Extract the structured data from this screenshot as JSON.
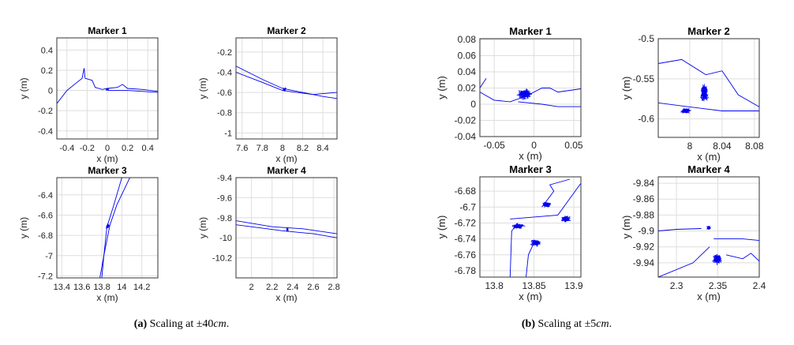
{
  "captions": [
    {
      "label": "(a)",
      "text": "Scaling at ±40",
      "unit": "cm",
      "end": "."
    },
    {
      "label": "(b)",
      "text": "Scaling at ±5",
      "unit": "cm",
      "end": "."
    }
  ],
  "line_color": "#0000ee",
  "chart_data": [
    {
      "type": "line",
      "panel": "a",
      "title": "Marker 1",
      "xlabel": "x (m)",
      "ylabel": "y (m)",
      "grid": true,
      "xlim": [
        -0.5,
        0.5
      ],
      "ylim": [
        -0.48,
        0.52
      ],
      "xticks": [
        -0.4,
        -0.2,
        0,
        0.2,
        0.4
      ],
      "xtick_labels": [
        "-0.4",
        "-0.2",
        "0",
        "0.2",
        "0.4"
      ],
      "yticks": [
        -0.4,
        -0.2,
        0,
        0.2,
        0.4
      ],
      "ytick_labels": [
        "-0.4",
        "-0.2",
        "0",
        "0.2",
        "0.4"
      ],
      "series": [
        {
          "x": [
            -0.5,
            -0.4,
            -0.3,
            -0.25,
            -0.23,
            -0.22,
            -0.15,
            -0.12,
            -0.05,
            0,
            0.1,
            0.15,
            0.2,
            0.35,
            0.5
          ],
          "y": [
            -0.13,
            0.0,
            0.08,
            0.12,
            0.22,
            0.12,
            0.1,
            0.03,
            0.01,
            0.02,
            0.03,
            0.06,
            0.02,
            0.01,
            -0.01
          ]
        },
        {
          "x": [
            0,
            0.2,
            0.5
          ],
          "y": [
            0,
            0.0,
            -0.02
          ]
        }
      ],
      "clusters": [
        {
          "x": 0,
          "y": 0.01,
          "sx": 0.02,
          "sy": 0.012
        }
      ]
    },
    {
      "type": "line",
      "panel": "a",
      "title": "Marker 2",
      "xlabel": "x (m)",
      "ylabel": "y (m)",
      "grid": true,
      "xlim": [
        7.54,
        8.54
      ],
      "ylim": [
        -1.06,
        -0.06
      ],
      "xticks": [
        7.6,
        7.8,
        8,
        8.2,
        8.4
      ],
      "xtick_labels": [
        "7.6",
        "7.8",
        "8",
        "8.2",
        "8.4"
      ],
      "yticks": [
        -1,
        -0.8,
        -0.6,
        -0.4,
        -0.2
      ],
      "ytick_labels": [
        "-1",
        "-0.8",
        "-0.6",
        "-0.4",
        "-0.2"
      ],
      "series": [
        {
          "x": [
            7.54,
            7.8,
            8,
            8.2,
            8.4,
            8.54
          ],
          "y": [
            -0.34,
            -0.47,
            -0.56,
            -0.6,
            -0.64,
            -0.66
          ]
        },
        {
          "x": [
            7.54,
            7.8,
            8,
            8.3,
            8.54
          ],
          "y": [
            -0.4,
            -0.5,
            -0.58,
            -0.62,
            -0.6
          ]
        }
      ],
      "clusters": [
        {
          "x": 8.02,
          "y": -0.57,
          "sx": 0.025,
          "sy": 0.02
        }
      ]
    },
    {
      "type": "line",
      "panel": "a",
      "title": "Marker 3",
      "xlabel": "x (m)",
      "ylabel": "y (m)",
      "grid": true,
      "xlim": [
        13.35,
        14.36
      ],
      "ylim": [
        -7.22,
        -6.23
      ],
      "xticks": [
        13.4,
        13.6,
        13.8,
        14,
        14.2
      ],
      "xtick_labels": [
        "13.4",
        "13.6",
        "13.8",
        "14",
        "14.2"
      ],
      "yticks": [
        -7.2,
        -7,
        -6.8,
        -6.6,
        -6.4
      ],
      "ytick_labels": [
        "-7.2",
        "-7",
        "-6.8",
        "-6.6",
        "-6.4"
      ],
      "series": [
        {
          "x": [
            14.08,
            13.95,
            13.88,
            13.82,
            13.78
          ],
          "y": [
            -6.23,
            -6.5,
            -6.7,
            -7.0,
            -7.22
          ]
        },
        {
          "x": [
            14.0,
            13.92,
            13.85,
            13.82,
            13.8
          ],
          "y": [
            -6.23,
            -6.5,
            -6.72,
            -7.0,
            -7.22
          ]
        }
      ],
      "clusters": [
        {
          "x": 13.86,
          "y": -6.71,
          "sx": 0.025,
          "sy": 0.04
        }
      ]
    },
    {
      "type": "line",
      "panel": "a",
      "title": "Marker 4",
      "xlabel": "x (m)",
      "ylabel": "y (m)",
      "grid": true,
      "xlim": [
        1.85,
        2.83
      ],
      "ylim": [
        -10.4,
        -9.4
      ],
      "xticks": [
        2,
        2.2,
        2.4,
        2.6,
        2.8
      ],
      "xtick_labels": [
        "2",
        "2.2",
        "2.4",
        "2.6",
        "2.8"
      ],
      "yticks": [
        -10.2,
        -10,
        -9.8,
        -9.6,
        -9.4
      ],
      "ytick_labels": [
        "-10.2",
        "-10",
        "-9.8",
        "-9.6",
        "-9.4"
      ],
      "series": [
        {
          "x": [
            1.85,
            2.2,
            2.5,
            2.83
          ],
          "y": [
            -9.83,
            -9.89,
            -9.91,
            -9.96
          ]
        },
        {
          "x": [
            1.85,
            2.3,
            2.6,
            2.83
          ],
          "y": [
            -9.87,
            -9.93,
            -9.96,
            -10.0
          ]
        }
      ],
      "clusters": [
        {
          "x": 2.35,
          "y": -9.92,
          "sx": 0.012,
          "sy": 0.025
        }
      ]
    },
    {
      "type": "line",
      "panel": "b",
      "title": "Marker 1",
      "xlabel": "x (m)",
      "ylabel": "y (m)",
      "grid": true,
      "xlim": [
        -0.068,
        0.059
      ],
      "ylim": [
        -0.04,
        0.081
      ],
      "xticks": [
        -0.05,
        0,
        0.05
      ],
      "xtick_labels": [
        "-0.05",
        "0",
        "0.05"
      ],
      "yticks": [
        -0.04,
        -0.02,
        0,
        0.02,
        0.04,
        0.06,
        0.08
      ],
      "ytick_labels": [
        "-0.04",
        "-0.02",
        "0",
        "0.02",
        "0.04",
        "0.06",
        "0.08"
      ],
      "series": [
        {
          "x": [
            -0.068,
            -0.064,
            -0.06
          ],
          "y": [
            0.02,
            0.026,
            0.032
          ]
        },
        {
          "x": [
            -0.068,
            -0.05,
            -0.03,
            -0.01,
            0.01,
            0.02,
            0.03,
            0.059
          ],
          "y": [
            0.015,
            0.005,
            0.003,
            0.01,
            0.02,
            0.02,
            0.015,
            0.019
          ]
        },
        {
          "x": [
            -0.02,
            0.01,
            0.03,
            0.059
          ],
          "y": [
            0.003,
            0.0,
            -0.003,
            -0.003
          ]
        }
      ],
      "clusters": [
        {
          "x": -0.012,
          "y": 0.012,
          "sx": 0.012,
          "sy": 0.008
        }
      ]
    },
    {
      "type": "line",
      "panel": "b",
      "title": "Marker 2",
      "xlabel": "x (m)",
      "ylabel": "y (m)",
      "grid": true,
      "xlim": [
        7.961,
        8.086
      ],
      "ylim": [
        -0.623,
        -0.5
      ],
      "xticks": [
        8,
        8.04,
        8.08
      ],
      "xtick_labels": [
        "8",
        "8.04",
        "8.08"
      ],
      "yticks": [
        -0.6,
        -0.55,
        -0.5
      ],
      "ytick_labels": [
        "-0.6",
        "-0.55",
        "-0.5"
      ],
      "series": [
        {
          "x": [
            7.961,
            7.99,
            8.02,
            8.04,
            8.06,
            8.086
          ],
          "y": [
            -0.531,
            -0.526,
            -0.545,
            -0.54,
            -0.57,
            -0.585
          ]
        },
        {
          "x": [
            7.961,
            8.0,
            8.04,
            8.086
          ],
          "y": [
            -0.58,
            -0.585,
            -0.59,
            -0.59
          ]
        }
      ],
      "clusters": [
        {
          "x": 8.018,
          "y": -0.568,
          "sx": 0.006,
          "sy": 0.014
        },
        {
          "x": 7.995,
          "y": -0.59,
          "sx": 0.008,
          "sy": 0.004
        }
      ]
    },
    {
      "type": "line",
      "panel": "b",
      "title": "Marker 3",
      "xlabel": "x (m)",
      "ylabel": "y (m)",
      "grid": true,
      "xlim": [
        13.782,
        13.909
      ],
      "ylim": [
        -6.788,
        -6.662
      ],
      "xticks": [
        13.8,
        13.85,
        13.9
      ],
      "xtick_labels": [
        "13.8",
        "13.85",
        "13.9"
      ],
      "yticks": [
        -6.78,
        -6.76,
        -6.74,
        -6.72,
        -6.7,
        -6.68
      ],
      "ytick_labels": [
        "-6.78",
        "-6.76",
        "-6.74",
        "-6.72",
        "-6.7",
        "-6.68"
      ],
      "series": [
        {
          "x": [
            13.82,
            13.822,
            13.83
          ],
          "y": [
            -6.788,
            -6.73,
            -6.72
          ]
        },
        {
          "x": [
            13.84,
            13.843,
            13.85
          ],
          "y": [
            -6.788,
            -6.76,
            -6.745
          ]
        },
        {
          "x": [
            13.82,
            13.88,
            13.909
          ],
          "y": [
            -6.715,
            -6.71,
            -6.67
          ]
        },
        {
          "x": [
            13.86,
            13.875,
            13.87,
            13.895
          ],
          "y": [
            -6.7,
            -6.68,
            -6.672,
            -6.665
          ]
        }
      ],
      "clusters": [
        {
          "x": 13.83,
          "y": -6.724,
          "sx": 0.01,
          "sy": 0.004
        },
        {
          "x": 13.852,
          "y": -6.745,
          "sx": 0.008,
          "sy": 0.005
        },
        {
          "x": 13.866,
          "y": -6.697,
          "sx": 0.007,
          "sy": 0.004
        },
        {
          "x": 13.89,
          "y": -6.715,
          "sx": 0.008,
          "sy": 0.005
        }
      ]
    },
    {
      "type": "line",
      "panel": "b",
      "title": "Marker 4",
      "xlabel": "x (m)",
      "ylabel": "y (m)",
      "grid": true,
      "xlim": [
        2.278,
        2.4
      ],
      "ylim": [
        -9.958,
        -9.832
      ],
      "xticks": [
        2.3,
        2.35,
        2.4
      ],
      "xtick_labels": [
        "2.3",
        "2.35",
        "2.4"
      ],
      "yticks": [
        -9.94,
        -9.92,
        -9.9,
        -9.88,
        -9.86,
        -9.84
      ],
      "ytick_labels": [
        "-9.94",
        "-9.92",
        "-9.9",
        "-9.88",
        "-9.86",
        "-9.84"
      ],
      "series": [
        {
          "x": [
            2.278,
            2.3,
            2.33
          ],
          "y": [
            -9.9,
            -9.898,
            -9.897
          ]
        },
        {
          "x": [
            2.278,
            2.32,
            2.34
          ],
          "y": [
            -9.958,
            -9.94,
            -9.92
          ]
        },
        {
          "x": [
            2.345,
            2.38,
            2.4
          ],
          "y": [
            -9.91,
            -9.91,
            -9.912
          ]
        },
        {
          "x": [
            2.36,
            2.38,
            2.39,
            2.4
          ],
          "y": [
            -9.93,
            -9.935,
            -9.928,
            -9.938
          ]
        }
      ],
      "clusters": [
        {
          "x": 2.339,
          "y": -9.896,
          "sx": 0.003,
          "sy": 0.003
        },
        {
          "x": 2.349,
          "y": -9.935,
          "sx": 0.007,
          "sy": 0.008
        }
      ]
    }
  ]
}
